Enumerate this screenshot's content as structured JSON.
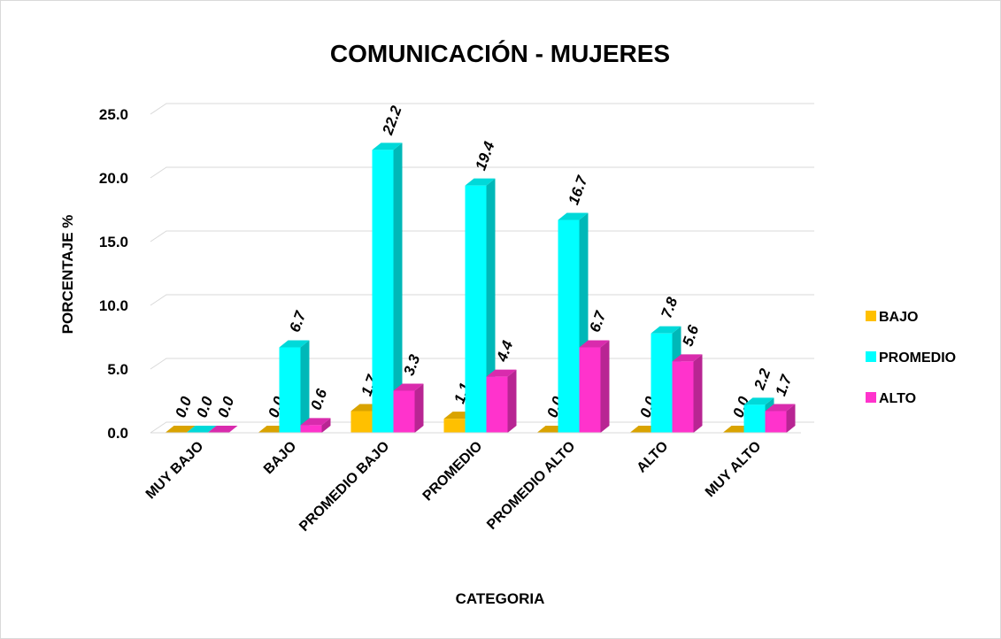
{
  "chart_data": {
    "type": "bar3d",
    "title": "COMUNICACIÓN - MUJERES",
    "y_label": "PORCENTAJE %",
    "x_label": "CATEGORIA",
    "categories": [
      "MUY BAJO",
      "BAJO",
      "PROMEDIO BAJO",
      "PROMEDIO",
      "PROMEDIO ALTO",
      "ALTO",
      "MUY ALTO"
    ],
    "series": [
      {
        "name": "BAJO",
        "color": "#ffc000",
        "values": [
          0,
          0,
          1.7,
          1.1,
          0,
          0,
          0
        ],
        "value_labels": [
          "0.0",
          "0.0",
          "1.7",
          "1.1",
          "0.0",
          "0.0",
          "0.0"
        ]
      },
      {
        "name": "PROMEDIO",
        "color": "#00ffff",
        "values": [
          0,
          6.7,
          22.2,
          19.4,
          16.7,
          7.8,
          2.2
        ],
        "value_labels": [
          "0.0",
          "6.7",
          "22.2",
          "19.4",
          "16.7",
          "7.8",
          "2.2"
        ]
      },
      {
        "name": "ALTO",
        "color": "#ff33cc",
        "values": [
          0,
          0.6,
          3.3,
          4.4,
          6.7,
          5.6,
          1.7
        ],
        "value_labels": [
          "0.0",
          "0.6",
          "3.3",
          "4.4",
          "6.7",
          "5.6",
          "1.7"
        ]
      }
    ],
    "ylim": [
      0,
      25
    ],
    "yticks": [
      {
        "value": 0,
        "label": "0.0"
      },
      {
        "value": 5,
        "label": "5.0"
      },
      {
        "value": 10,
        "label": "10.0"
      },
      {
        "value": 15,
        "label": "15.0"
      },
      {
        "value": 20,
        "label": "20.0"
      },
      {
        "value": 25,
        "label": "25.0"
      }
    ],
    "grid": true,
    "legend": "right"
  }
}
